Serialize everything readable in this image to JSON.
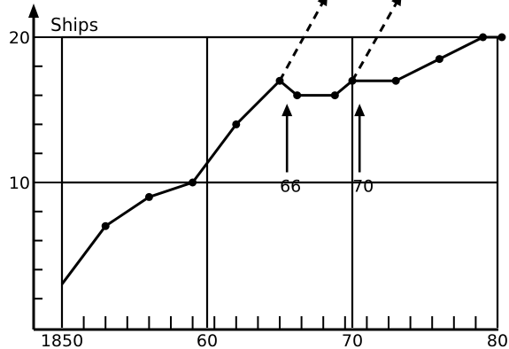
{
  "chart_data": {
    "type": "line",
    "title": "",
    "xlabel": "",
    "ylabel": "Ships",
    "xlim": [
      1850,
      1880
    ],
    "ylim": [
      0,
      20
    ],
    "grid": true,
    "x_tick_labels": [
      {
        "value": 1850,
        "label": "1850"
      },
      {
        "value": 1860,
        "label": "60"
      },
      {
        "value": 1870,
        "label": "70"
      },
      {
        "value": 1880,
        "label": "80"
      }
    ],
    "y_tick_labels": [
      {
        "value": 10,
        "label": "10"
      },
      {
        "value": 20,
        "label": "20"
      }
    ],
    "series": [
      {
        "style": "solid",
        "x": [
          1850,
          1853,
          1856,
          1859,
          1862,
          1865,
          1866.2,
          1868.8,
          1870,
          1873,
          1876,
          1879,
          1880.3
        ],
        "y": [
          3,
          7,
          9,
          10,
          14,
          17,
          16,
          16,
          17,
          17,
          18.5,
          20,
          20
        ],
        "markers": [
          false,
          true,
          true,
          true,
          true,
          true,
          true,
          true,
          true,
          true,
          true,
          true,
          true
        ]
      },
      {
        "style": "dashed",
        "x": [
          1865,
          1868.3
        ],
        "y": [
          17,
          23
        ]
      },
      {
        "style": "dashed",
        "x": [
          1870,
          1873.4
        ],
        "y": [
          17,
          23
        ]
      }
    ],
    "annotations": [
      {
        "label": "66",
        "x": 1865.5,
        "y_from": 10.7,
        "y_to": 15.3
      },
      {
        "label": "70",
        "x": 1870.5,
        "y_from": 10.7,
        "y_to": 15.3
      }
    ]
  }
}
